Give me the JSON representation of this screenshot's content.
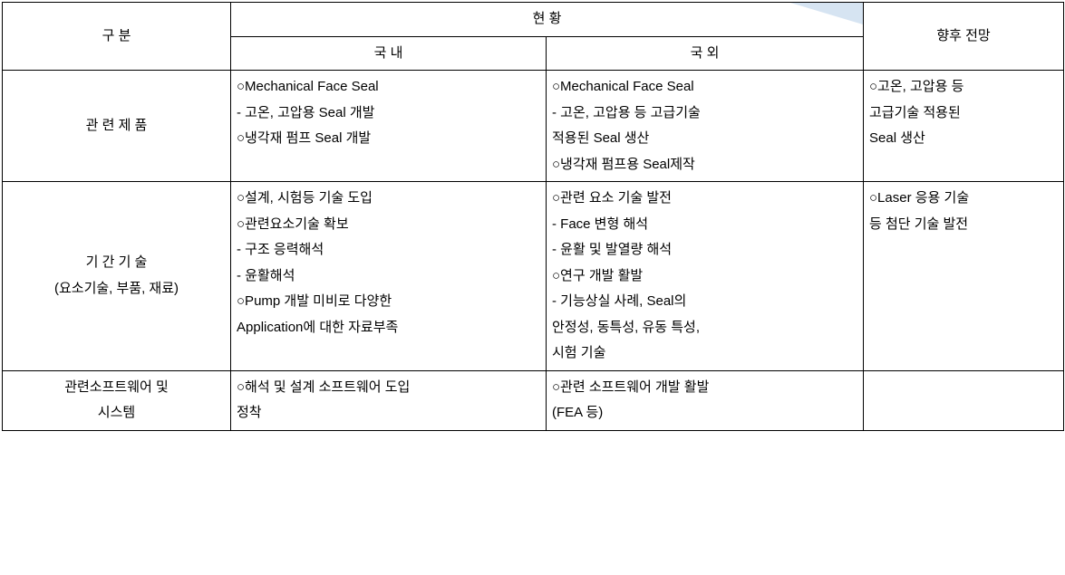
{
  "table": {
    "headers": {
      "category": "구  분",
      "status": "현 황",
      "domestic": "국 내",
      "foreign": "국 외",
      "future": "향후 전망"
    },
    "rows": [
      {
        "category": "관 련 제 품",
        "domestic": "○Mechanical Face Seal\n   - 고온, 고압용 Seal 개발\n○냉각재 펌프 Seal 개발",
        "foreign": "○Mechanical Face Seal\n   - 고온, 고압용 등 고급기술\n  적용된 Seal 생산\n○냉각재 펌프용 Seal제작",
        "future": "○고온, 고압용 등\n고급기술 적용된\nSeal 생산"
      },
      {
        "category": "기 간 기 술\n(요소기술, 부품, 재료)",
        "domestic": "○설계, 시험등 기술 도입\n○관련요소기술 확보\n   - 구조 응력해석\n   - 윤활해석\n○Pump 개발 미비로 다양한\nApplication에 대한 자료부족",
        "foreign": "○관련 요소 기술 발전\n   - Face 변형 해석\n   - 윤활 및 발열량 해석\n○연구 개발 활발\n   - 기능상실 사례, Seal의\n  안정성, 동특성, 유동 특성,\n  시험 기술",
        "future": "○Laser 응용 기술\n등 첨단 기술 발전"
      },
      {
        "category": "관련소프트웨어 및\n시스템",
        "domestic": "○해석 및 설계 소프트웨어 도입\n정착",
        "foreign": "○관련 소프트웨어 개발 활발\n(FEA 등)",
        "future": ""
      }
    ],
    "colors": {
      "border": "#000000",
      "background": "#ffffff",
      "accent": "#c5d9ed"
    },
    "font_size": 15
  }
}
